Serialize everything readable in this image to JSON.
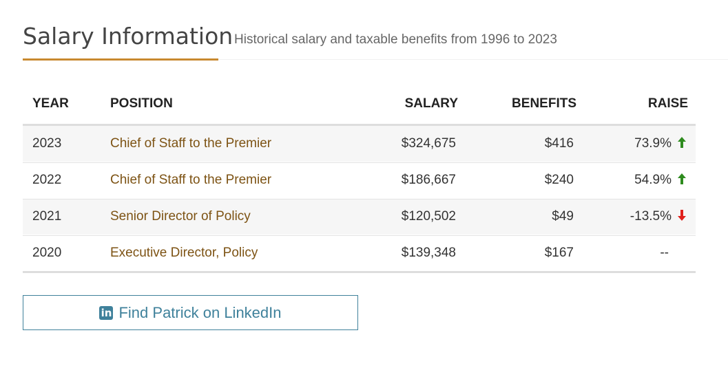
{
  "header": {
    "title": "Salary Information",
    "subtitle": "Historical salary and taxable benefits from 1996 to 2023"
  },
  "table": {
    "columns": [
      "YEAR",
      "POSITION",
      "SALARY",
      "BENEFITS",
      "RAISE"
    ],
    "rows": [
      [
        "2023",
        "Chief of Staff to the Premier",
        "$324,675",
        "$416",
        "73.9%"
      ],
      [
        "2022",
        "Chief of Staff to the Premier",
        "$186,667",
        "$240",
        "54.9%"
      ],
      [
        "2021",
        "Senior Director of Policy",
        "$120,502",
        "$49",
        "-13.5%"
      ],
      [
        "2020",
        "Executive Director, Policy",
        "$139,348",
        "$167",
        "--"
      ]
    ]
  },
  "button": {
    "label": "Find Patrick on LinkedIn"
  }
}
